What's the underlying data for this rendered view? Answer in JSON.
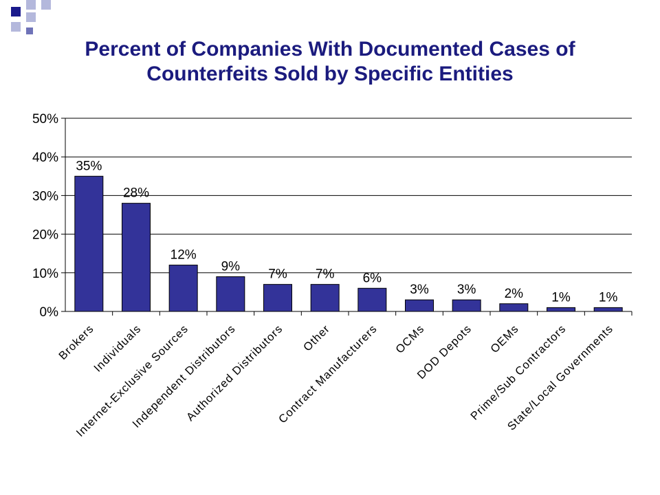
{
  "slide": {
    "title_line1": "Percent of Companies With Documented Cases of",
    "title_line2": "Counterfeits Sold by Specific Entities"
  },
  "colors": {
    "bar": "#333399",
    "title": "#1b1b7e",
    "logo_dark": "#1a1a8c",
    "logo_light": "#b4b8dc"
  },
  "chart_data": {
    "type": "bar",
    "title": "Percent of Companies With Documented Cases of Counterfeits Sold by Specific Entities",
    "categories": [
      "Brokers",
      "Individuals",
      "Internet-Exclusive Sources",
      "Independent Distributors",
      "Authorized Distributors",
      "Other",
      "Contract Manufacturers",
      "OCMs",
      "DOD Depots",
      "OEMs",
      "Prime/Sub Contractors",
      "State/Local Governments"
    ],
    "values": [
      35,
      28,
      12,
      9,
      7,
      7,
      6,
      3,
      3,
      2,
      1,
      1
    ],
    "data_labels": [
      "35%",
      "28%",
      "12%",
      "9%",
      "7%",
      "7%",
      "6%",
      "3%",
      "3%",
      "2%",
      "1%",
      "1%"
    ],
    "ylim": [
      0,
      50
    ],
    "yticks": [
      0,
      10,
      20,
      30,
      40,
      50
    ],
    "ytick_labels": [
      "0%",
      "10%",
      "20%",
      "30%",
      "40%",
      "50%"
    ],
    "grid": true,
    "legend": "none"
  }
}
